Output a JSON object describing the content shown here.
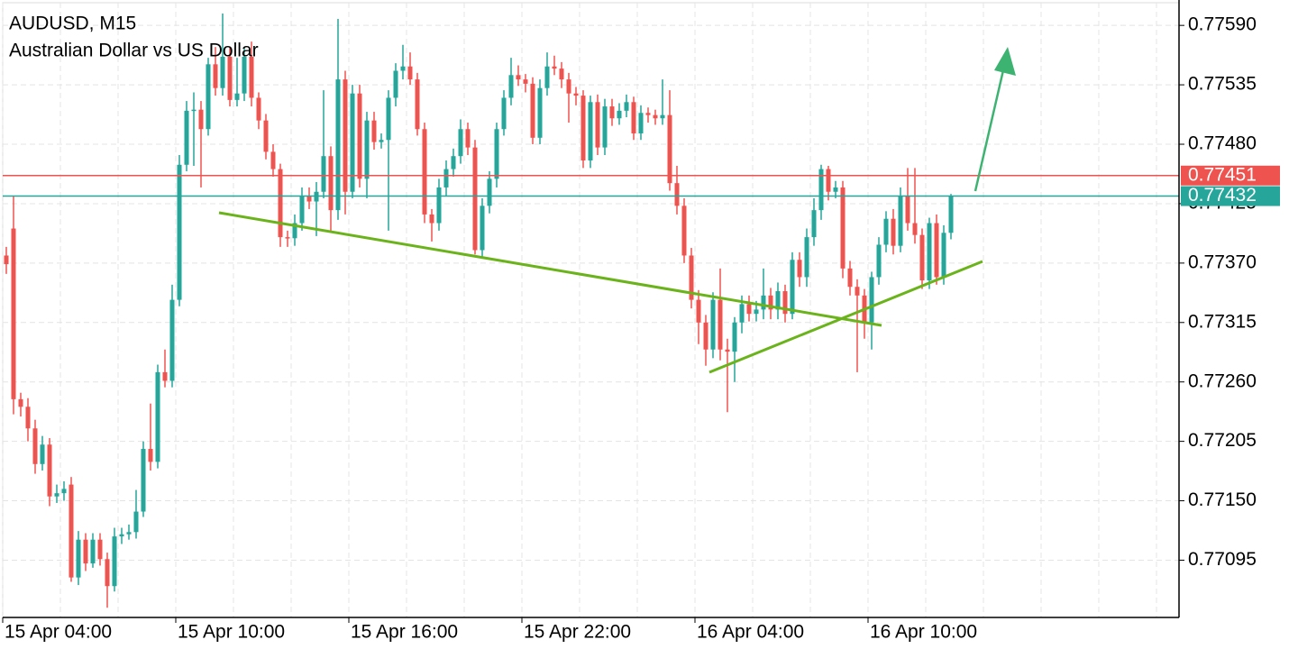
{
  "chart_data": {
    "type": "candlestick",
    "title": "AUDUSD, M15",
    "subtitle": "Australian Dollar vs US Dollar",
    "categories": [
      "15 Apr 04:00",
      null,
      null,
      null,
      null,
      null,
      null,
      null,
      null,
      null,
      null,
      null,
      null,
      null,
      null,
      null,
      null,
      null,
      null,
      null,
      null,
      null,
      null,
      null,
      "15 Apr 10:00",
      null,
      null,
      null,
      null,
      null,
      null,
      null,
      null,
      null,
      null,
      null,
      null,
      null,
      null,
      null,
      null,
      null,
      null,
      null,
      null,
      null,
      null,
      null,
      "15 Apr 16:00",
      null,
      null,
      null,
      null,
      null,
      null,
      null,
      null,
      null,
      null,
      null,
      null,
      null,
      null,
      null,
      null,
      null,
      null,
      null,
      null,
      null,
      null,
      null,
      "15 Apr 22:00",
      null,
      null,
      null,
      null,
      null,
      null,
      null,
      null,
      null,
      null,
      null,
      null,
      null,
      null,
      null,
      null,
      null,
      null,
      null,
      null,
      null,
      null,
      null,
      "16 Apr 04:00",
      null,
      null,
      null,
      null,
      null,
      null,
      null,
      null,
      null,
      null,
      null,
      null,
      null,
      null,
      null,
      null,
      null,
      null,
      null,
      null,
      null,
      null,
      null,
      "16 Apr 10:00",
      null,
      null,
      null,
      null,
      null,
      null,
      null,
      null,
      null,
      null,
      null
    ],
    "open": [
      0.77377,
      0.77402,
      0.77244,
      0.77237,
      0.77217,
      0.77184,
      0.77202,
      0.77154,
      0.77157,
      0.77165,
      0.77079,
      0.77114,
      0.77092,
      0.77114,
      0.77096,
      0.77071,
      0.77117,
      0.77119,
      0.77121,
      0.7714,
      0.77198,
      0.77186,
      0.77269,
      0.77261,
      0.77336,
      0.77461,
      0.77511,
      0.77512,
      0.77494,
      0.77554,
      0.77532,
      0.77561,
      0.77521,
      0.77527,
      0.77561,
      0.77523,
      0.77502,
      0.77473,
      0.77457,
      0.77394,
      0.77393,
      0.77407,
      0.77432,
      0.77427,
      0.77436,
      0.77469,
      0.77419,
      0.7754,
      0.77436,
      0.77527,
      0.77448,
      0.77502,
      0.77482,
      0.77484,
      0.77523,
      0.77548,
      0.77552,
      0.7754,
      0.77494,
      0.77415,
      0.77407,
      0.7744,
      0.77457,
      0.77469,
      0.77494,
      0.77477,
      0.77382,
      0.77423,
      0.77448,
      0.77494,
      0.77523,
      0.77544,
      0.7754,
      0.77536,
      0.77486,
      0.77532,
      0.77552,
      0.7755,
      0.7754,
      0.77527,
      0.77525,
      0.77465,
      0.77519,
      0.77477,
      0.77515,
      0.77504,
      0.77511,
      0.77519,
      0.7749,
      0.77509,
      0.77507,
      0.77504,
      0.77507,
      0.77444,
      0.77423,
      0.77377,
      0.77336,
      0.77315,
      0.7729,
      0.77336,
      0.7729,
      0.77288,
      0.77315,
      0.77332,
      0.77323,
      0.77327,
      0.7734,
      0.77327,
      0.77344,
      0.77323,
      0.77373,
      0.77357,
      0.77394,
      0.77419,
      0.77457,
      0.77436,
      0.7744,
      0.77365,
      0.77348,
      0.7734,
      0.77315,
      0.77357,
      0.77387,
      0.77411,
      0.77386,
      0.77432,
      0.77407,
      0.77396,
      0.77354,
      0.77407,
      0.77357,
      0.77398
    ],
    "close": [
      0.77369,
      0.77244,
      0.77237,
      0.77217,
      0.77184,
      0.77202,
      0.77154,
      0.77157,
      0.77161,
      0.77079,
      0.77114,
      0.77092,
      0.77114,
      0.77096,
      0.77071,
      0.77117,
      0.77119,
      0.77121,
      0.7714,
      0.77198,
      0.77186,
      0.77269,
      0.77261,
      0.77336,
      0.77461,
      0.77511,
      0.77512,
      0.77494,
      0.77554,
      0.77532,
      0.77561,
      0.77521,
      0.77527,
      0.77561,
      0.77523,
      0.77502,
      0.77473,
      0.77457,
      0.77394,
      0.77393,
      0.77407,
      0.77432,
      0.77427,
      0.77436,
      0.77469,
      0.77419,
      0.7754,
      0.77436,
      0.77527,
      0.77448,
      0.77502,
      0.77482,
      0.77484,
      0.77523,
      0.77548,
      0.77552,
      0.7754,
      0.77494,
      0.77415,
      0.77407,
      0.7744,
      0.77457,
      0.77469,
      0.77494,
      0.77477,
      0.77382,
      0.77423,
      0.77448,
      0.77494,
      0.77523,
      0.77544,
      0.7754,
      0.77536,
      0.77486,
      0.77532,
      0.77552,
      0.7755,
      0.7754,
      0.77527,
      0.77525,
      0.77465,
      0.77519,
      0.77477,
      0.77515,
      0.77504,
      0.77511,
      0.77519,
      0.7749,
      0.77509,
      0.77507,
      0.77504,
      0.77507,
      0.77444,
      0.77423,
      0.77377,
      0.77336,
      0.77315,
      0.7729,
      0.77336,
      0.7729,
      0.77288,
      0.77315,
      0.77332,
      0.77323,
      0.77327,
      0.7734,
      0.77327,
      0.77344,
      0.77323,
      0.77373,
      0.77357,
      0.77394,
      0.77419,
      0.77457,
      0.77436,
      0.7744,
      0.77365,
      0.77348,
      0.7734,
      0.77315,
      0.77357,
      0.77387,
      0.77411,
      0.77386,
      0.77432,
      0.77407,
      0.77396,
      0.77354,
      0.77407,
      0.77357,
      0.77398,
      0.77432
    ],
    "high": [
      0.77385,
      0.77432,
      0.7725,
      0.77245,
      0.77225,
      0.7721,
      0.77208,
      0.77165,
      0.77168,
      0.77172,
      0.77122,
      0.7712,
      0.7712,
      0.7712,
      0.77102,
      0.77125,
      0.77125,
      0.77128,
      0.7716,
      0.77205,
      0.7724,
      0.77276,
      0.7729,
      0.7735,
      0.7747,
      0.7752,
      0.77528,
      0.7752,
      0.7756,
      0.7757,
      0.77601,
      0.7757,
      0.7756,
      0.7757,
      0.77575,
      0.77528,
      0.77508,
      0.7748,
      0.77462,
      0.774,
      0.77415,
      0.7744,
      0.7744,
      0.77445,
      0.7753,
      0.77478,
      0.77596,
      0.77548,
      0.77535,
      0.77535,
      0.7751,
      0.7751,
      0.7749,
      0.7753,
      0.77555,
      0.77572,
      0.77565,
      0.77546,
      0.775,
      0.7742,
      0.77448,
      0.77465,
      0.77476,
      0.77503,
      0.775,
      0.77484,
      0.7743,
      0.77455,
      0.775,
      0.7753,
      0.7756,
      0.77553,
      0.77545,
      0.77542,
      0.7754,
      0.77565,
      0.77562,
      0.77556,
      0.77546,
      0.77533,
      0.7753,
      0.77525,
      0.77526,
      0.77522,
      0.77522,
      0.77518,
      0.77526,
      0.77524,
      0.77516,
      0.77514,
      0.77512,
      0.7754,
      0.7753,
      0.7746,
      0.7743,
      0.77384,
      0.77345,
      0.77322,
      0.77343,
      0.77365,
      0.773,
      0.7732,
      0.7734,
      0.7734,
      0.77335,
      0.77365,
      0.77347,
      0.77352,
      0.7735,
      0.7738,
      0.7738,
      0.77402,
      0.7743,
      0.77461,
      0.7746,
      0.77446,
      0.77446,
      0.77372,
      0.77355,
      0.77346,
      0.77362,
      0.77394,
      0.77418,
      0.7742,
      0.7744,
      0.77458,
      0.77458,
      0.77402,
      0.77412,
      0.77415,
      0.77405,
      0.77434
    ],
    "low": [
      0.7736,
      0.7723,
      0.77228,
      0.77205,
      0.77175,
      0.77178,
      0.77145,
      0.77148,
      0.7715,
      0.77075,
      0.77072,
      0.77085,
      0.77088,
      0.7709,
      0.77051,
      0.77066,
      0.7711,
      0.77114,
      0.77115,
      0.77135,
      0.77178,
      0.7718,
      0.77255,
      0.77255,
      0.7733,
      0.77455,
      0.7746,
      0.7744,
      0.77488,
      0.77525,
      0.77525,
      0.77515,
      0.77515,
      0.7752,
      0.77515,
      0.77494,
      0.77466,
      0.7745,
      0.77385,
      0.77385,
      0.77386,
      0.774,
      0.7742,
      0.77395,
      0.7743,
      0.774,
      0.7741,
      0.77415,
      0.7743,
      0.7744,
      0.7743,
      0.77475,
      0.77476,
      0.774,
      0.77515,
      0.7754,
      0.77535,
      0.77488,
      0.77407,
      0.7739,
      0.774,
      0.77432,
      0.7745,
      0.77462,
      0.7747,
      0.77378,
      0.77376,
      0.77416,
      0.7744,
      0.77488,
      0.77516,
      0.77534,
      0.77528,
      0.7748,
      0.7748,
      0.77525,
      0.77544,
      0.77532,
      0.775,
      0.77516,
      0.77458,
      0.77458,
      0.7747,
      0.7747,
      0.77497,
      0.77498,
      0.77505,
      0.77484,
      0.77484,
      0.775,
      0.77498,
      0.77498,
      0.77437,
      0.77415,
      0.7737,
      0.77328,
      0.77295,
      0.77275,
      0.77282,
      0.7728,
      0.77232,
      0.7726,
      0.77305,
      0.77316,
      0.77316,
      0.77318,
      0.77318,
      0.77318,
      0.77315,
      0.77318,
      0.77348,
      0.77348,
      0.77386,
      0.7741,
      0.77428,
      0.7743,
      0.77356,
      0.7734,
      0.77269,
      0.773,
      0.7729,
      0.7735,
      0.7738,
      0.77378,
      0.7738,
      0.774,
      0.77388,
      0.77346,
      0.77346,
      0.7735,
      0.7735,
      0.77392
    ],
    "up_color": "#26a69a",
    "down_color": "#ef5350",
    "ylim": [
      0.77042,
      0.77611
    ],
    "yticks": [
      {
        "value": 0.7759,
        "label": "0.77590"
      },
      0.77535,
      {
        "value": 0.7748,
        "label": "0.77480"
      },
      0.77425,
      {
        "value": 0.7737,
        "label": "0.77370"
      },
      0.77315,
      {
        "value": 0.7726,
        "label": "0.77260"
      },
      0.77205,
      {
        "value": 0.7715,
        "label": "0.77150"
      },
      0.77095
    ],
    "grid": true,
    "price_lines": [
      {
        "value": 0.77451,
        "color": "#ef5350"
      },
      {
        "value": 0.77432,
        "color": "#26a69a"
      }
    ]
  }
}
